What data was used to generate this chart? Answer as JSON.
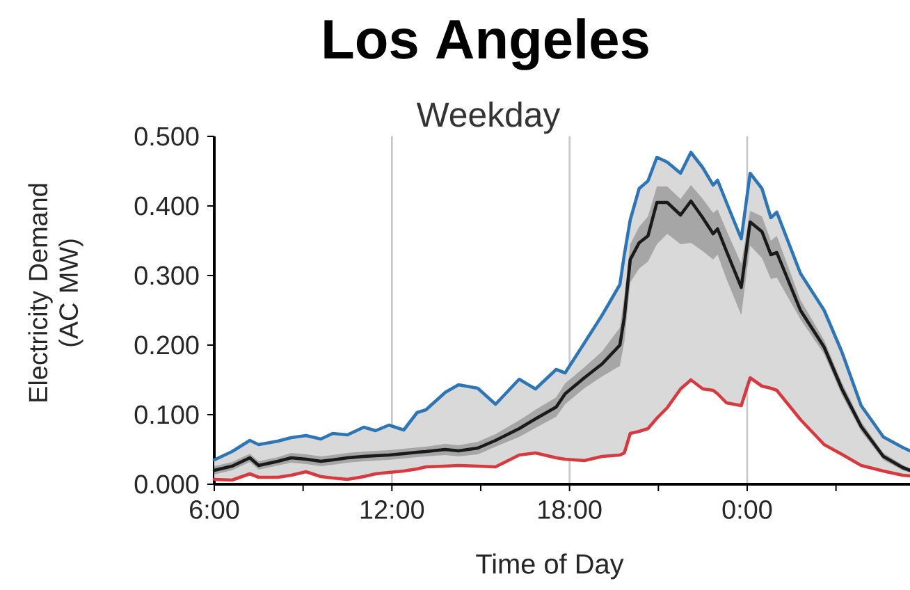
{
  "chart_data": {
    "type": "line",
    "title": "Los Angeles",
    "subtitle": "Weekday",
    "xlabel": "Time of Day",
    "ylabel": "Electricity Demand (AC MW)",
    "xlim": [
      6,
      29.5
    ],
    "ylim": [
      0,
      0.5
    ],
    "xticks": [
      {
        "value": 6,
        "label": "6:00"
      },
      {
        "value": 9,
        "label": null
      },
      {
        "value": 12,
        "label": "12:00"
      },
      {
        "value": 15,
        "label": null
      },
      {
        "value": 18,
        "label": "18:00"
      },
      {
        "value": 21,
        "label": null
      },
      {
        "value": 24,
        "label": "0:00"
      },
      {
        "value": 27,
        "label": null
      }
    ],
    "yticks": [
      {
        "value": 0,
        "label": "0.000"
      },
      {
        "value": 0.1,
        "label": "0.100"
      },
      {
        "value": 0.2,
        "label": "0.200"
      },
      {
        "value": 0.3,
        "label": "0.300"
      },
      {
        "value": 0.4,
        "label": "0.400"
      },
      {
        "value": 0.5,
        "label": "0.500"
      }
    ],
    "grid": "x",
    "x": [
      6.0,
      6.6,
      7.2,
      7.5,
      8.15,
      8.6,
      9.1,
      9.6,
      10.0,
      10.5,
      11.05,
      11.45,
      11.9,
      12.4,
      12.85,
      13.15,
      13.8,
      14.25,
      14.9,
      15.5,
      16.3,
      16.85,
      17.55,
      17.85,
      18.5,
      19.1,
      19.7,
      19.85,
      20.05,
      20.35,
      20.65,
      20.95,
      21.3,
      21.75,
      22.1,
      22.5,
      22.85,
      23.0,
      23.3,
      23.8,
      24.1,
      24.5,
      24.8,
      25.0,
      25.8,
      26.6,
      27.2,
      27.85,
      28.6,
      29.25,
      29.5
    ],
    "series": [
      {
        "color": "#2e75b6",
        "values": [
          0.035,
          0.047,
          0.063,
          0.057,
          0.062,
          0.067,
          0.07,
          0.065,
          0.073,
          0.071,
          0.082,
          0.077,
          0.085,
          0.078,
          0.103,
          0.107,
          0.132,
          0.143,
          0.138,
          0.115,
          0.151,
          0.137,
          0.165,
          0.16,
          0.203,
          0.243,
          0.287,
          0.33,
          0.38,
          0.425,
          0.436,
          0.47,
          0.463,
          0.447,
          0.477,
          0.455,
          0.43,
          0.437,
          0.405,
          0.353,
          0.447,
          0.425,
          0.383,
          0.391,
          0.303,
          0.25,
          0.19,
          0.113,
          0.068,
          0.053,
          0.048
        ],
        "lower": [
          0.007,
          0.006,
          0.015,
          0.01,
          0.01,
          0.013,
          0.018,
          0.011,
          0.009,
          0.007,
          0.011,
          0.015,
          0.017,
          0.019,
          0.022,
          0.025,
          0.026,
          0.027,
          0.026,
          0.025,
          0.042,
          0.045,
          0.038,
          0.036,
          0.034,
          0.04,
          0.042,
          0.045,
          0.073,
          0.076,
          0.08,
          0.095,
          0.11,
          0.137,
          0.15,
          0.137,
          0.135,
          0.13,
          0.117,
          0.113,
          0.153,
          0.141,
          0.138,
          0.135,
          0.093,
          0.057,
          0.043,
          0.027,
          0.019,
          0.013,
          0.012
        ],
        "upper": [
          0.035,
          0.047,
          0.063,
          0.057,
          0.062,
          0.067,
          0.07,
          0.065,
          0.073,
          0.071,
          0.082,
          0.077,
          0.085,
          0.078,
          0.103,
          0.107,
          0.132,
          0.143,
          0.138,
          0.115,
          0.151,
          0.137,
          0.165,
          0.16,
          0.203,
          0.243,
          0.287,
          0.33,
          0.38,
          0.425,
          0.436,
          0.47,
          0.463,
          0.447,
          0.477,
          0.455,
          0.43,
          0.437,
          0.405,
          0.353,
          0.447,
          0.425,
          0.383,
          0.391,
          0.303,
          0.25,
          0.19,
          0.113,
          0.068,
          0.053,
          0.048
        ]
      },
      {
        "color": "#d63a3f",
        "values": [
          0.007,
          0.006,
          0.015,
          0.01,
          0.01,
          0.013,
          0.018,
          0.011,
          0.009,
          0.007,
          0.011,
          0.015,
          0.017,
          0.019,
          0.022,
          0.025,
          0.026,
          0.027,
          0.026,
          0.025,
          0.042,
          0.045,
          0.038,
          0.036,
          0.034,
          0.04,
          0.042,
          0.045,
          0.073,
          0.076,
          0.08,
          0.095,
          0.11,
          0.137,
          0.15,
          0.137,
          0.135,
          0.13,
          0.117,
          0.113,
          0.153,
          0.141,
          0.138,
          0.135,
          0.093,
          0.057,
          0.043,
          0.027,
          0.019,
          0.013,
          0.012
        ]
      },
      {
        "color": "#1a1a1a",
        "values": [
          0.02,
          0.026,
          0.038,
          0.027,
          0.033,
          0.038,
          0.036,
          0.033,
          0.035,
          0.038,
          0.04,
          0.041,
          0.042,
          0.044,
          0.046,
          0.047,
          0.05,
          0.048,
          0.052,
          0.063,
          0.08,
          0.094,
          0.111,
          0.13,
          0.153,
          0.173,
          0.2,
          0.24,
          0.323,
          0.347,
          0.357,
          0.405,
          0.405,
          0.387,
          0.407,
          0.383,
          0.36,
          0.367,
          0.335,
          0.283,
          0.377,
          0.363,
          0.33,
          0.333,
          0.25,
          0.197,
          0.137,
          0.083,
          0.04,
          0.024,
          0.02
        ],
        "lower": [
          0.014,
          0.02,
          0.032,
          0.021,
          0.027,
          0.031,
          0.029,
          0.026,
          0.028,
          0.031,
          0.033,
          0.034,
          0.035,
          0.037,
          0.039,
          0.04,
          0.042,
          0.04,
          0.043,
          0.054,
          0.068,
          0.081,
          0.097,
          0.115,
          0.138,
          0.155,
          0.17,
          0.205,
          0.29,
          0.31,
          0.32,
          0.345,
          0.36,
          0.345,
          0.347,
          0.335,
          0.323,
          0.33,
          0.295,
          0.243,
          0.343,
          0.325,
          0.295,
          0.297,
          0.237,
          0.187,
          0.128,
          0.076,
          0.035,
          0.02,
          0.017
        ],
        "upper": [
          0.026,
          0.032,
          0.044,
          0.033,
          0.039,
          0.045,
          0.043,
          0.04,
          0.042,
          0.045,
          0.047,
          0.048,
          0.049,
          0.051,
          0.053,
          0.054,
          0.058,
          0.056,
          0.061,
          0.072,
          0.092,
          0.107,
          0.125,
          0.145,
          0.168,
          0.191,
          0.225,
          0.27,
          0.345,
          0.37,
          0.385,
          0.428,
          0.428,
          0.41,
          0.43,
          0.41,
          0.39,
          0.395,
          0.365,
          0.317,
          0.393,
          0.385,
          0.35,
          0.357,
          0.265,
          0.207,
          0.146,
          0.09,
          0.045,
          0.028,
          0.023
        ]
      }
    ]
  }
}
